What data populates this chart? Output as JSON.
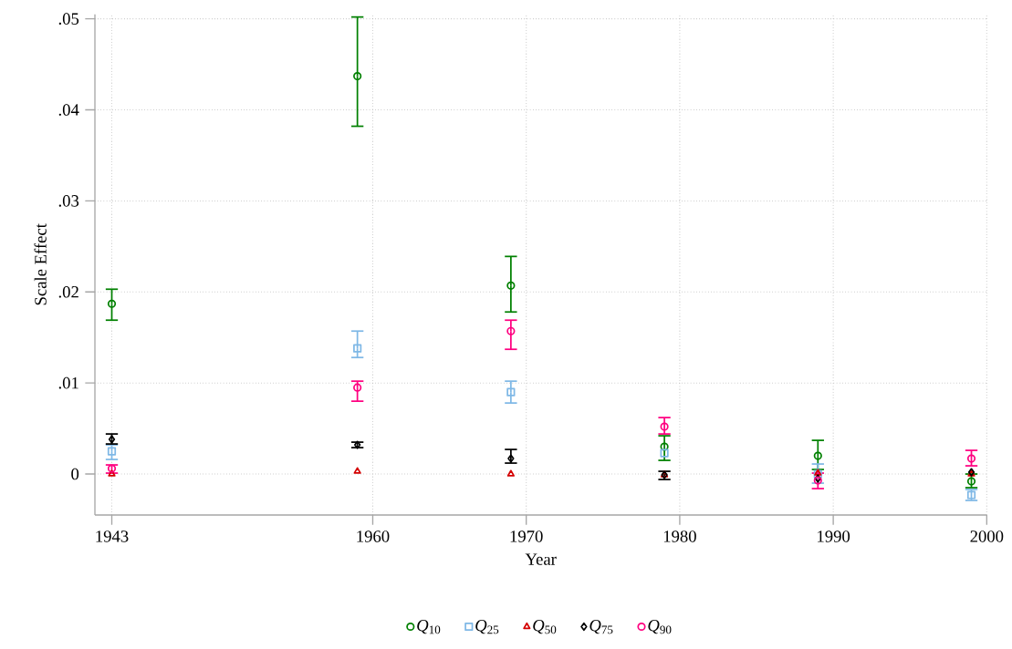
{
  "chart_data": {
    "type": "scatter",
    "xlabel": "Year",
    "ylabel": "Scale Effect",
    "x": [
      1943,
      1959,
      1969,
      1979,
      1989,
      1999
    ],
    "series": [
      {
        "name": "*Q*$_{10}$",
        "color": "#008000",
        "marker": "circle",
        "values": [
          0.0187,
          0.0437,
          0.0207,
          0.003,
          0.002,
          -0.0008
        ],
        "errors": [
          [
            0.0169,
            0.0203
          ],
          [
            0.0382,
            0.0502
          ],
          [
            0.0178,
            0.0239
          ],
          [
            0.0015,
            0.0042
          ],
          [
            0.0005,
            0.0037
          ],
          [
            -0.0015,
            0.0
          ]
        ]
      },
      {
        "name": "*Q*$_{25}$",
        "color": "#7fb8e6",
        "marker": "square",
        "values": [
          0.0025,
          0.0138,
          0.009,
          0.0023,
          0.0,
          -0.0023
        ],
        "errors": [
          [
            0.0016,
            0.0032
          ],
          [
            0.0128,
            0.0157
          ],
          [
            0.0078,
            0.0102
          ],
          null,
          [
            -0.001,
            0.0011
          ],
          [
            -0.0029,
            -0.0017
          ]
        ]
      },
      {
        "name": "*Q*$_{50}$",
        "color": "#d40000",
        "marker": "triangle",
        "values": [
          0.0,
          0.0003,
          0.0,
          -0.0001,
          0.0001,
          0.0
        ]
      },
      {
        "name": "*Q*$_{75}$",
        "color": "#000000",
        "marker": "diamond",
        "values": [
          0.0038,
          0.0032,
          0.0017,
          -0.0001,
          -0.0005,
          0.0002
        ],
        "errors": [
          [
            0.0033,
            0.0044
          ],
          [
            0.0029,
            0.0035
          ],
          [
            0.0012,
            0.0027
          ],
          [
            -0.0006,
            0.0003
          ],
          null,
          null
        ]
      },
      {
        "name": "*Q*$_{90}$",
        "color": "#ff0080",
        "marker": "circle",
        "values": [
          0.0006,
          0.0095,
          0.0157,
          0.0052,
          -0.0007,
          0.0017
        ],
        "errors": [
          [
            0.0001,
            0.001
          ],
          [
            0.008,
            0.0102
          ],
          [
            0.0137,
            0.0169
          ],
          [
            0.0044,
            0.0062
          ],
          [
            -0.0016,
            0.0001
          ],
          [
            0.0009,
            0.0026
          ]
        ]
      }
    ],
    "xlim": [
      1941.9,
      2000
    ],
    "xticks": [
      1943,
      1960,
      1970,
      1980,
      1990,
      2000
    ],
    "ylim": [
      -0.0045,
      0.0505
    ],
    "yticks": [
      {
        "value": 0,
        "label": "0"
      },
      {
        "value": 0.01,
        "label": ".01"
      },
      {
        "value": 0.02,
        "label": ".02"
      },
      {
        "value": 0.03,
        "label": ".03"
      },
      {
        "value": 0.04,
        "label": ".04"
      },
      {
        "value": 0.05,
        "label": ".05"
      }
    ],
    "grid": true,
    "legend": "bottom"
  }
}
